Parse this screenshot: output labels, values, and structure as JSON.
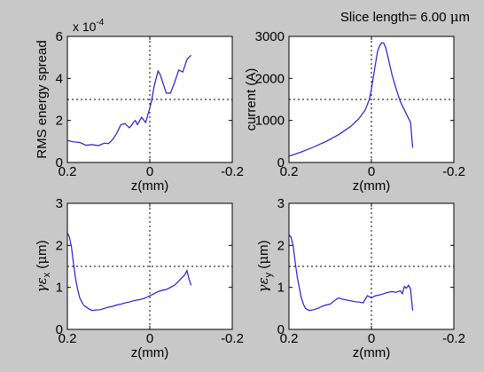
{
  "figure": {
    "background": "#c8c8c8",
    "axes_background": "#ffffff",
    "line_color": "#1f1fd6",
    "annotation": {
      "prefix": "Slice length=  6.00 ",
      "mu": "μ",
      "unit": "m"
    }
  },
  "chart_data": [
    {
      "type": "line",
      "title": "",
      "xlabel": "z(mm)",
      "ylabel": "RMS energy spread",
      "xlim": [
        0.2,
        -0.2
      ],
      "ylim": [
        0,
        6
      ],
      "y_multiplier": "x 10",
      "y_multiplier_exponent": "-4",
      "grid": "dotted crosshair at centre",
      "xticks": [
        {
          "v": 0.2,
          "label": "0.2"
        },
        {
          "v": 0,
          "label": "0"
        },
        {
          "v": -0.2,
          "label": "-0.2"
        }
      ],
      "yticks": [
        {
          "v": 0,
          "label": "0"
        },
        {
          "v": 2,
          "label": "2"
        },
        {
          "v": 4,
          "label": "4"
        },
        {
          "v": 6,
          "label": "6"
        }
      ],
      "series": [
        {
          "x": [
            0.2,
            0.185,
            0.17,
            0.155,
            0.14,
            0.125,
            0.11,
            0.1,
            0.09,
            0.08,
            0.07,
            0.06,
            0.05,
            0.045,
            0.04,
            0.035,
            0.03,
            0.02,
            0.01,
            0.0,
            -0.005,
            -0.01,
            -0.02,
            -0.025,
            -0.03,
            -0.04,
            -0.05,
            -0.06,
            -0.07,
            -0.08,
            -0.09,
            -0.1
          ],
          "y": [
            1.05,
            0.98,
            0.95,
            0.82,
            0.85,
            0.8,
            0.92,
            0.9,
            1.1,
            1.4,
            1.8,
            1.85,
            1.65,
            1.75,
            1.9,
            2.0,
            1.8,
            2.15,
            1.9,
            2.6,
            3.0,
            3.6,
            4.35,
            4.2,
            3.9,
            3.3,
            3.3,
            3.8,
            4.4,
            4.3,
            4.9,
            5.1
          ]
        }
      ]
    },
    {
      "type": "line",
      "title": "",
      "xlabel": "z(mm)",
      "ylabel": "current (A)",
      "xlim": [
        0.2,
        -0.2
      ],
      "ylim": [
        0,
        3000
      ],
      "grid": "dotted crosshair at centre",
      "xticks": [
        {
          "v": 0.2,
          "label": "0.2"
        },
        {
          "v": 0,
          "label": "0"
        },
        {
          "v": -0.2,
          "label": "-0.2"
        }
      ],
      "yticks": [
        {
          "v": 0,
          "label": "0"
        },
        {
          "v": 1000,
          "label": "1000"
        },
        {
          "v": 2000,
          "label": "2000"
        },
        {
          "v": 3000,
          "label": "3000"
        }
      ],
      "series": [
        {
          "x": [
            0.2,
            0.17,
            0.14,
            0.11,
            0.08,
            0.05,
            0.03,
            0.015,
            0.005,
            0.0,
            -0.005,
            -0.01,
            -0.015,
            -0.02,
            -0.025,
            -0.03,
            -0.035,
            -0.04,
            -0.045,
            -0.05,
            -0.06,
            -0.07,
            -0.08,
            -0.085,
            -0.09,
            -0.095,
            -0.1
          ],
          "y": [
            150,
            250,
            370,
            500,
            660,
            860,
            1050,
            1250,
            1500,
            1750,
            2050,
            2350,
            2650,
            2780,
            2850,
            2840,
            2720,
            2520,
            2300,
            2080,
            1750,
            1450,
            1250,
            1150,
            1050,
            950,
            350
          ]
        }
      ]
    },
    {
      "type": "line",
      "title": "",
      "xlabel": "z(mm)",
      "ylabel": {
        "greek": "γε",
        "sub": "x",
        "unit_prefix": " (",
        "mu": "μ",
        "unit_suffix": "m)"
      },
      "xlim": [
        0.2,
        -0.2
      ],
      "ylim": [
        0,
        3
      ],
      "grid": "dotted crosshair at centre",
      "xticks": [
        {
          "v": 0.2,
          "label": "0.2"
        },
        {
          "v": 0,
          "label": "0"
        },
        {
          "v": -0.2,
          "label": "-0.2"
        }
      ],
      "yticks": [
        {
          "v": 0,
          "label": "0"
        },
        {
          "v": 1,
          "label": "1"
        },
        {
          "v": 2,
          "label": "2"
        },
        {
          "v": 3,
          "label": "3"
        }
      ],
      "series": [
        {
          "x": [
            0.2,
            0.195,
            0.19,
            0.185,
            0.18,
            0.175,
            0.17,
            0.165,
            0.16,
            0.15,
            0.14,
            0.13,
            0.12,
            0.11,
            0.1,
            0.09,
            0.08,
            0.07,
            0.06,
            0.05,
            0.04,
            0.03,
            0.02,
            0.01,
            0.0,
            -0.01,
            -0.02,
            -0.03,
            -0.04,
            -0.05,
            -0.06,
            -0.07,
            -0.08,
            -0.085,
            -0.09,
            -0.095,
            -0.1
          ],
          "y": [
            2.3,
            2.2,
            1.95,
            1.55,
            1.2,
            0.95,
            0.75,
            0.65,
            0.57,
            0.5,
            0.45,
            0.46,
            0.47,
            0.5,
            0.53,
            0.55,
            0.58,
            0.6,
            0.63,
            0.65,
            0.68,
            0.7,
            0.72,
            0.75,
            0.8,
            0.85,
            0.9,
            0.93,
            0.95,
            1.0,
            1.05,
            1.15,
            1.25,
            1.3,
            1.4,
            1.2,
            1.05
          ]
        }
      ]
    },
    {
      "type": "line",
      "title": "",
      "xlabel": "z(mm)",
      "ylabel": {
        "greek": "γε",
        "sub": "y",
        "unit_prefix": " (",
        "mu": "μ",
        "unit_suffix": "m)"
      },
      "xlim": [
        0.2,
        -0.2
      ],
      "ylim": [
        0,
        3
      ],
      "grid": "dotted crosshair at centre",
      "xticks": [
        {
          "v": 0.2,
          "label": "0.2"
        },
        {
          "v": 0,
          "label": "0"
        },
        {
          "v": -0.2,
          "label": "-0.2"
        }
      ],
      "yticks": [
        {
          "v": 0,
          "label": "0"
        },
        {
          "v": 1,
          "label": "1"
        },
        {
          "v": 2,
          "label": "2"
        },
        {
          "v": 3,
          "label": "3"
        }
      ],
      "series": [
        {
          "x": [
            0.2,
            0.195,
            0.19,
            0.185,
            0.18,
            0.175,
            0.17,
            0.165,
            0.16,
            0.155,
            0.15,
            0.14,
            0.13,
            0.12,
            0.11,
            0.1,
            0.09,
            0.08,
            0.07,
            0.06,
            0.05,
            0.04,
            0.03,
            0.02,
            0.01,
            0.0,
            -0.01,
            -0.02,
            -0.03,
            -0.04,
            -0.05,
            -0.06,
            -0.07,
            -0.075,
            -0.08,
            -0.085,
            -0.09,
            -0.095,
            -0.1
          ],
          "y": [
            2.25,
            2.2,
            2.0,
            1.6,
            1.25,
            1.0,
            0.75,
            0.6,
            0.5,
            0.47,
            0.45,
            0.47,
            0.5,
            0.55,
            0.58,
            0.6,
            0.68,
            0.75,
            0.72,
            0.7,
            0.68,
            0.66,
            0.65,
            0.63,
            0.8,
            0.75,
            0.8,
            0.82,
            0.85,
            0.88,
            0.9,
            0.88,
            0.92,
            0.85,
            1.02,
            0.98,
            1.05,
            0.95,
            0.45
          ]
        }
      ]
    }
  ]
}
